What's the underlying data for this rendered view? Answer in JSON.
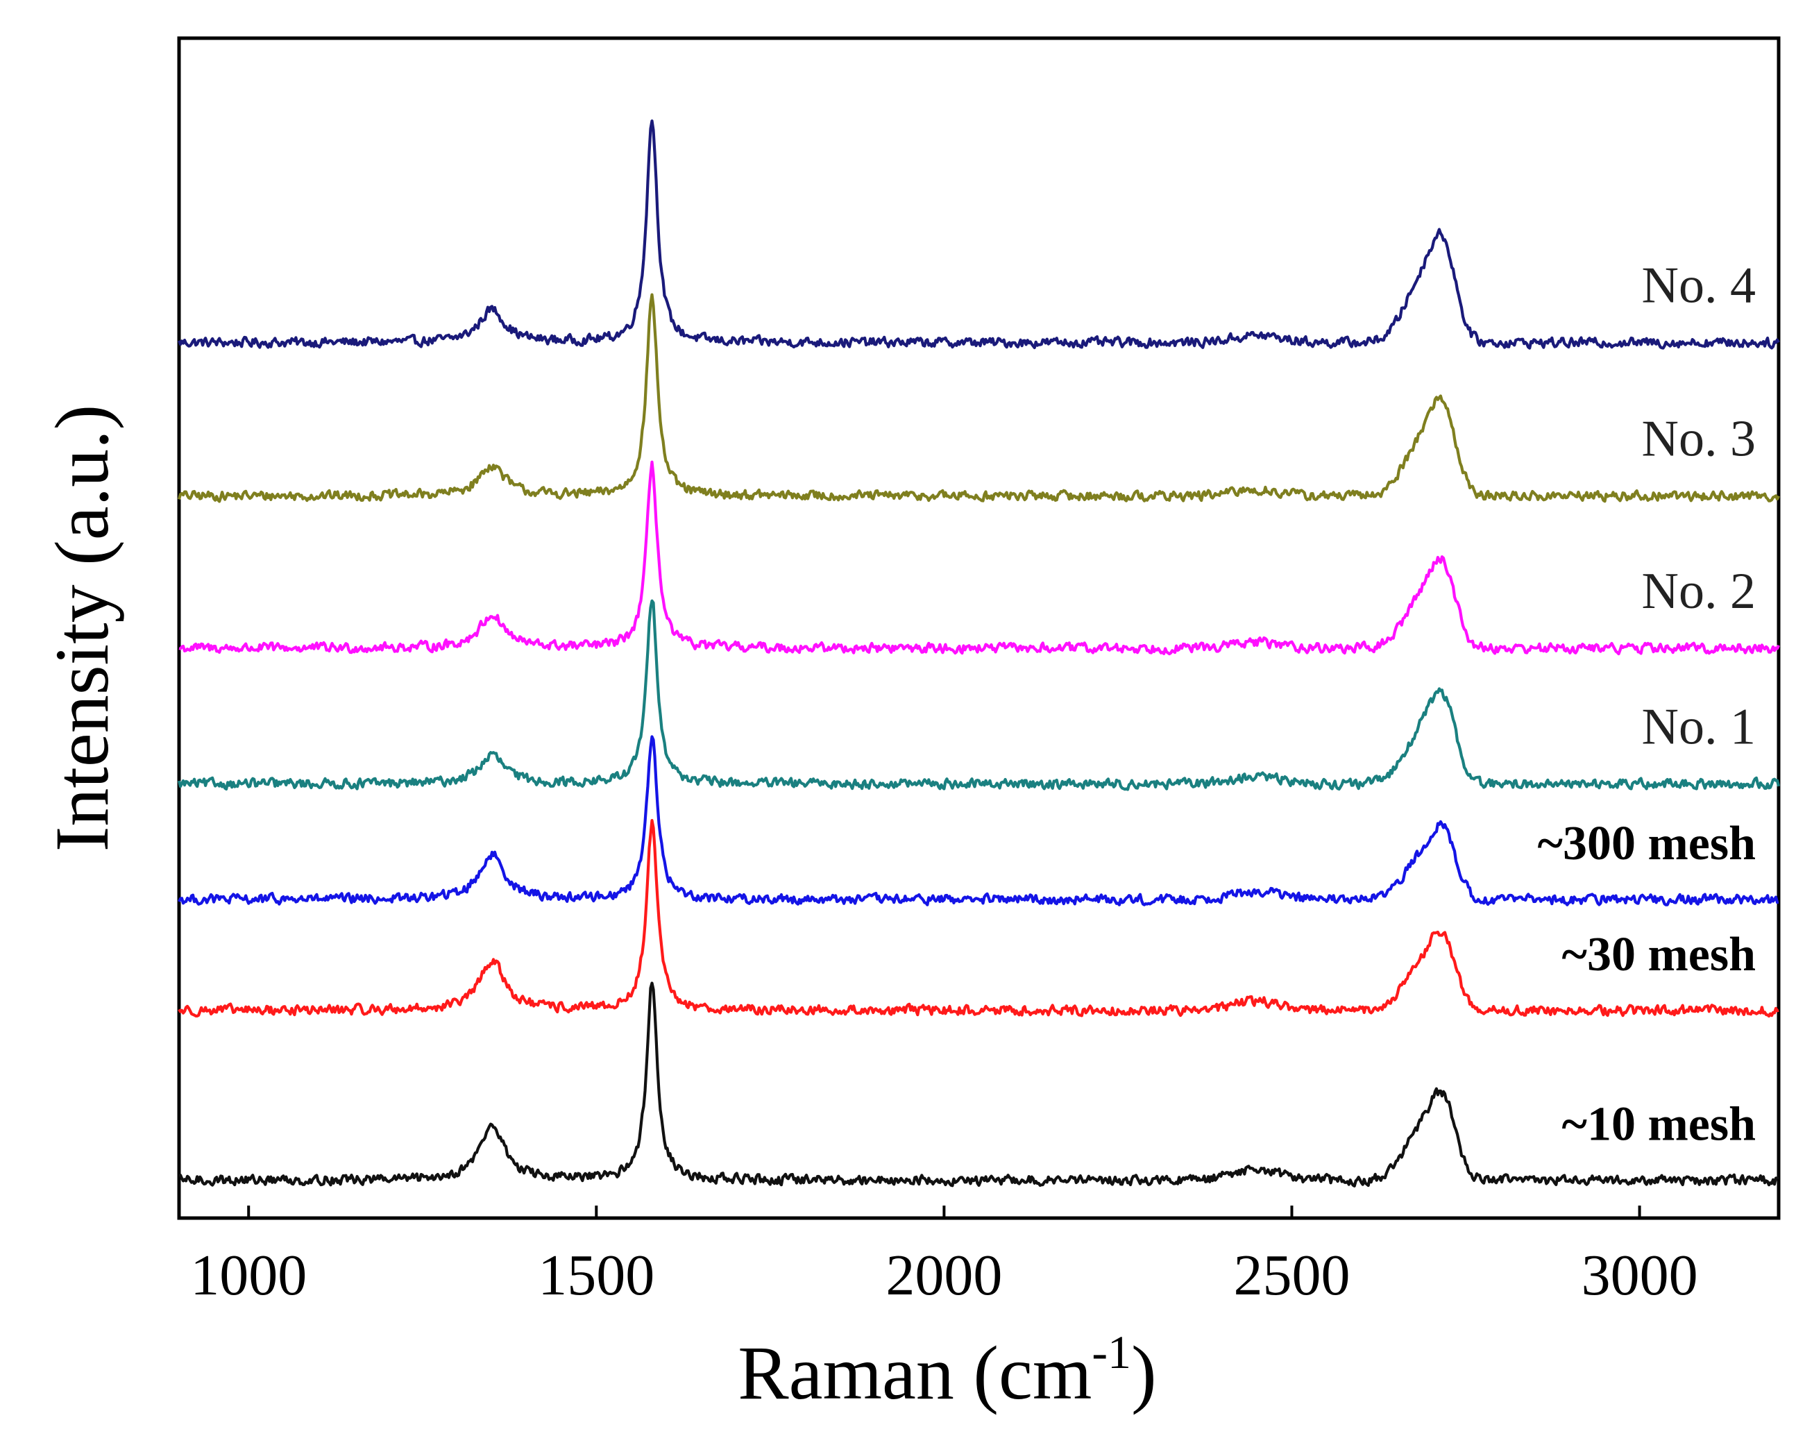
{
  "chart_data": {
    "type": "line",
    "title": "",
    "xlabel": "Raman (cm",
    "xlabel_sup": "-1",
    "xlabel_close": ")",
    "ylabel": "Intensity (a.u.)",
    "xlim": [
      900,
      3200
    ],
    "ylim": [
      0,
      1
    ],
    "xticks": [
      1000,
      1500,
      2000,
      2500,
      3000
    ],
    "xtick_labels": [
      "1000",
      "1500",
      "2000",
      "2500",
      "3000"
    ],
    "yticks_shown": false,
    "grid": false,
    "legend": "inline labels at right end of each trace",
    "peaks": {
      "D_band": 1350,
      "G_band": 1580,
      "weak_band": 2450,
      "2D_band": 2715
    },
    "series": [
      {
        "name": "No.   4",
        "color": "#1a1a7a",
        "baseline": 0.742,
        "D": 0.028,
        "G": 0.19,
        "weak": 0.006,
        "twoD": 0.08,
        "label_style": "serif"
      },
      {
        "name": "No.   3",
        "color": "#7f7f1f",
        "baseline": 0.612,
        "D": 0.026,
        "G": 0.17,
        "weak": 0.005,
        "twoD": 0.072,
        "label_style": "serif"
      },
      {
        "name": "No.   2",
        "color": "#ff10ff",
        "baseline": 0.483,
        "D": 0.028,
        "G": 0.155,
        "weak": 0.005,
        "twoD": 0.066,
        "label_style": "serif"
      },
      {
        "name": "No.   1",
        "color": "#1a8080",
        "baseline": 0.368,
        "D": 0.024,
        "G": 0.157,
        "weak": 0.006,
        "twoD": 0.068,
        "label_style": "serif"
      },
      {
        "name": "~300 mesh",
        "color": "#1414e6",
        "baseline": 0.27,
        "D": 0.038,
        "G": 0.138,
        "weak": 0.007,
        "twoD": 0.055,
        "label_style": "bold"
      },
      {
        "name": "~30 mesh",
        "color": "#ff1a1a",
        "baseline": 0.176,
        "D": 0.042,
        "G": 0.158,
        "weak": 0.008,
        "twoD": 0.058,
        "label_style": "bold"
      },
      {
        "name": "~10 mesh",
        "color": "#111111",
        "baseline": 0.032,
        "D": 0.046,
        "G": 0.167,
        "weak": 0.009,
        "twoD": 0.065,
        "label_style": "bold"
      }
    ]
  }
}
